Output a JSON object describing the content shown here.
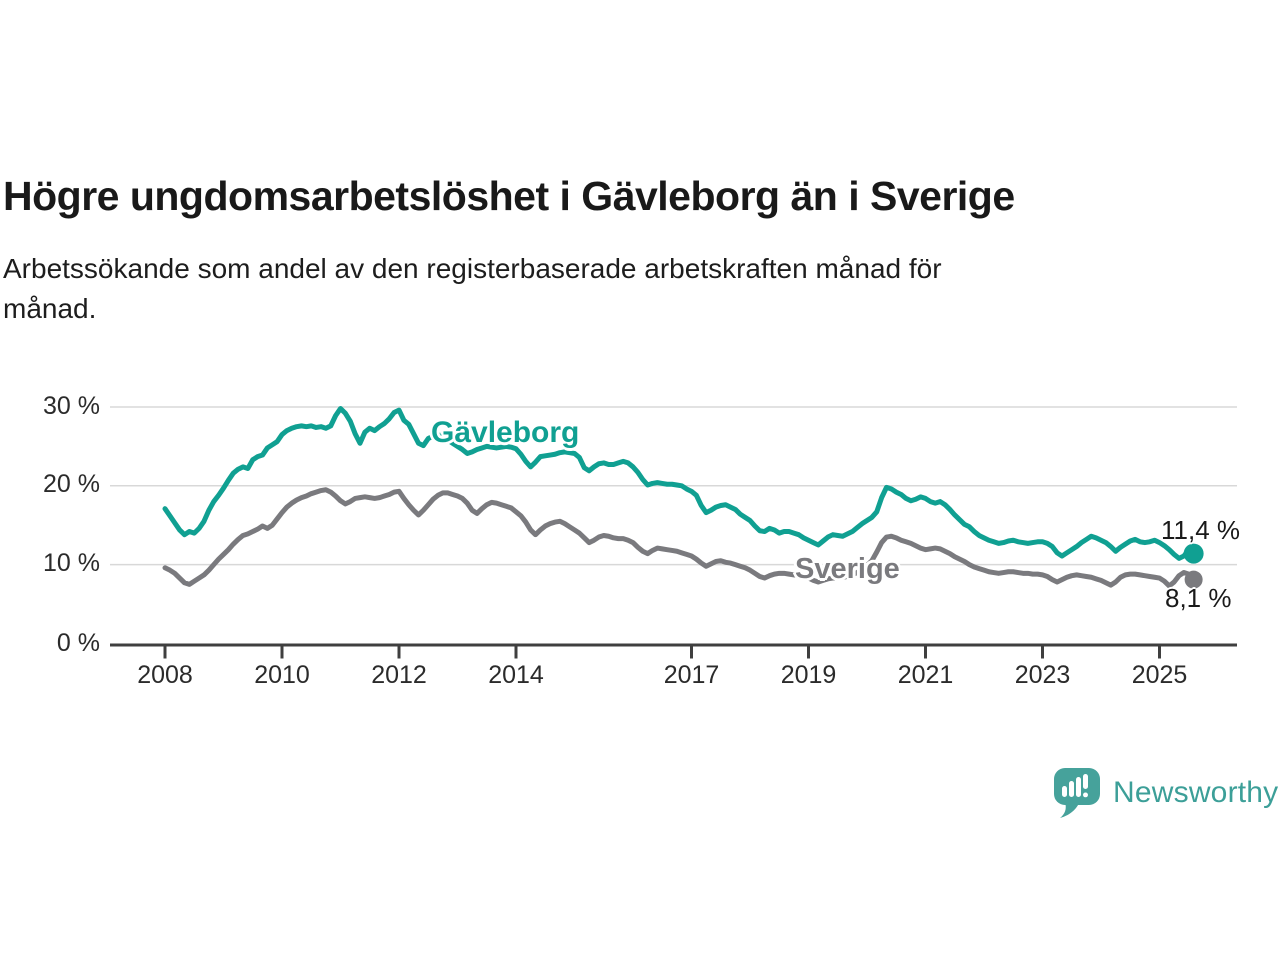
{
  "header": {
    "title": "Högre ungdomsarbetslöshet i Gävleborg än i Sverige",
    "subtitle_lines": [
      "Arbetssökande som andel av den registerbaserade arbetskraften månad för",
      "månad."
    ]
  },
  "chart": {
    "y_ticks": [
      "30 %",
      "20 %",
      "10 %",
      "0 %"
    ],
    "y_grid_values": [
      30,
      20,
      10
    ],
    "x_ticks": [
      "2008",
      "2010",
      "2012",
      "2014",
      "2017",
      "2019",
      "2021",
      "2023",
      "2025"
    ],
    "x_tick_years": [
      2008,
      2010,
      2012,
      2014,
      2017,
      2019,
      2021,
      2023,
      2025
    ],
    "series_labels": {
      "gavleborg": "Gävleborg",
      "sverige": "Sverige"
    },
    "end_value_labels": {
      "gavleborg": "11,4 %",
      "sverige": "8,1 %"
    },
    "colors": {
      "gavleborg": "#10A092",
      "sverige": "#7A7A7E",
      "grid": "#d8d8d8",
      "axis": "#3f3f3f",
      "text": "#2b2b2b"
    }
  },
  "chart_data": {
    "type": "line",
    "title": "Högre ungdomsarbetslöshet i Gävleborg än i Sverige",
    "subtitle": "Arbetssökande som andel av den registerbaserade arbetskraften månad för månad.",
    "unit": "%",
    "x_start": "2008-01",
    "x_end": "2025-08",
    "x_step": "month",
    "ylim": [
      0,
      32
    ],
    "grid": true,
    "legend_position": "inline-labels",
    "series": [
      {
        "name": "Gävleborg",
        "color": "#10A092",
        "last_value_label": "11,4 %",
        "values": [
          17.1,
          16.2,
          15.3,
          14.4,
          13.8,
          14.2,
          14.0,
          14.6,
          15.5,
          16.9,
          18.0,
          18.8,
          19.7,
          20.7,
          21.6,
          22.1,
          22.4,
          22.2,
          23.3,
          23.7,
          23.9,
          24.8,
          25.2,
          25.6,
          26.5,
          27.0,
          27.3,
          27.5,
          27.6,
          27.5,
          27.6,
          27.4,
          27.5,
          27.3,
          27.6,
          28.9,
          29.8,
          29.2,
          28.2,
          26.6,
          25.4,
          26.8,
          27.3,
          27.0,
          27.5,
          27.9,
          28.5,
          29.3,
          29.6,
          28.3,
          27.8,
          26.6,
          25.4,
          25.1,
          26.0,
          26.3,
          26.5,
          26.2,
          25.8,
          25.4,
          25.0,
          24.6,
          24.1,
          24.3,
          24.6,
          24.8,
          25.0,
          24.9,
          24.8,
          24.9,
          25.0,
          24.9,
          24.7,
          24.0,
          23.1,
          22.4,
          23.0,
          23.7,
          23.8,
          23.9,
          24.0,
          24.2,
          24.3,
          24.2,
          24.1,
          23.6,
          22.3,
          21.9,
          22.4,
          22.8,
          22.9,
          22.7,
          22.7,
          22.9,
          23.1,
          22.9,
          22.4,
          21.7,
          20.8,
          20.1,
          20.3,
          20.4,
          20.3,
          20.2,
          20.2,
          20.1,
          20.0,
          19.6,
          19.3,
          18.8,
          17.5,
          16.6,
          16.9,
          17.3,
          17.5,
          17.6,
          17.3,
          17.0,
          16.4,
          16.0,
          15.6,
          14.9,
          14.3,
          14.2,
          14.6,
          14.4,
          14.0,
          14.2,
          14.2,
          14.0,
          13.8,
          13.4,
          13.1,
          12.8,
          12.5,
          13.0,
          13.5,
          13.8,
          13.7,
          13.6,
          13.9,
          14.2,
          14.7,
          15.2,
          15.6,
          16.0,
          16.7,
          18.5,
          19.8,
          19.6,
          19.2,
          18.9,
          18.4,
          18.1,
          18.3,
          18.6,
          18.4,
          18.0,
          17.8,
          18.0,
          17.6,
          17.0,
          16.3,
          15.7,
          15.1,
          14.8,
          14.2,
          13.7,
          13.4,
          13.1,
          12.9,
          12.7,
          12.8,
          13.0,
          13.1,
          12.9,
          12.8,
          12.7,
          12.8,
          12.9,
          12.9,
          12.7,
          12.3,
          11.5,
          11.1,
          11.5,
          11.9,
          12.3,
          12.8,
          13.2,
          13.6,
          13.4,
          13.1,
          12.8,
          12.3,
          11.7,
          12.2,
          12.6,
          13.0,
          13.2,
          12.9,
          12.8,
          12.9,
          13.1,
          12.8,
          12.4,
          11.9,
          11.3,
          10.8,
          11.1,
          11.9,
          11.4
        ]
      },
      {
        "name": "Sverige",
        "color": "#7A7A7E",
        "last_value_label": "8,1 %",
        "values": [
          9.6,
          9.3,
          8.9,
          8.3,
          7.7,
          7.5,
          7.9,
          8.3,
          8.7,
          9.3,
          10.0,
          10.7,
          11.3,
          11.9,
          12.6,
          13.2,
          13.7,
          13.9,
          14.2,
          14.5,
          14.9,
          14.6,
          15.0,
          15.8,
          16.6,
          17.3,
          17.8,
          18.2,
          18.5,
          18.7,
          19.0,
          19.2,
          19.4,
          19.5,
          19.2,
          18.7,
          18.1,
          17.7,
          18.0,
          18.4,
          18.5,
          18.6,
          18.5,
          18.4,
          18.5,
          18.7,
          18.9,
          19.2,
          19.3,
          18.4,
          17.6,
          16.9,
          16.3,
          16.9,
          17.6,
          18.3,
          18.8,
          19.1,
          19.1,
          18.9,
          18.7,
          18.4,
          17.8,
          16.9,
          16.5,
          17.1,
          17.6,
          17.9,
          17.8,
          17.6,
          17.4,
          17.2,
          16.7,
          16.2,
          15.4,
          14.4,
          13.8,
          14.4,
          14.9,
          15.2,
          15.4,
          15.5,
          15.2,
          14.8,
          14.4,
          14.0,
          13.4,
          12.8,
          13.1,
          13.5,
          13.7,
          13.6,
          13.4,
          13.3,
          13.3,
          13.1,
          12.8,
          12.2,
          11.7,
          11.4,
          11.8,
          12.1,
          12.0,
          11.9,
          11.8,
          11.7,
          11.5,
          11.3,
          11.1,
          10.7,
          10.2,
          9.8,
          10.1,
          10.4,
          10.5,
          10.3,
          10.2,
          10.0,
          9.8,
          9.6,
          9.3,
          8.9,
          8.5,
          8.3,
          8.6,
          8.8,
          8.9,
          8.9,
          8.8,
          8.7,
          8.6,
          8.5,
          8.3,
          8.0,
          7.8,
          8.0,
          8.2,
          8.3,
          8.3,
          8.4,
          8.5,
          8.7,
          9.0,
          9.4,
          9.9,
          10.5,
          11.6,
          12.8,
          13.5,
          13.6,
          13.4,
          13.1,
          12.9,
          12.7,
          12.4,
          12.1,
          11.9,
          12.0,
          12.1,
          12.0,
          11.7,
          11.4,
          11.0,
          10.7,
          10.4,
          10.0,
          9.7,
          9.5,
          9.3,
          9.1,
          9.0,
          8.9,
          9.0,
          9.1,
          9.1,
          9.0,
          8.9,
          8.9,
          8.8,
          8.8,
          8.7,
          8.5,
          8.1,
          7.8,
          8.1,
          8.4,
          8.6,
          8.7,
          8.6,
          8.5,
          8.4,
          8.2,
          8.0,
          7.7,
          7.4,
          7.8,
          8.4,
          8.7,
          8.8,
          8.8,
          8.7,
          8.6,
          8.5,
          8.4,
          8.3,
          7.9,
          7.3,
          7.8,
          8.6,
          9.0,
          8.8,
          8.1
        ]
      }
    ]
  },
  "footer": {
    "brand": "Newsworthy",
    "brand_color": "#3C9F98",
    "logo_color": "#46A29B"
  }
}
